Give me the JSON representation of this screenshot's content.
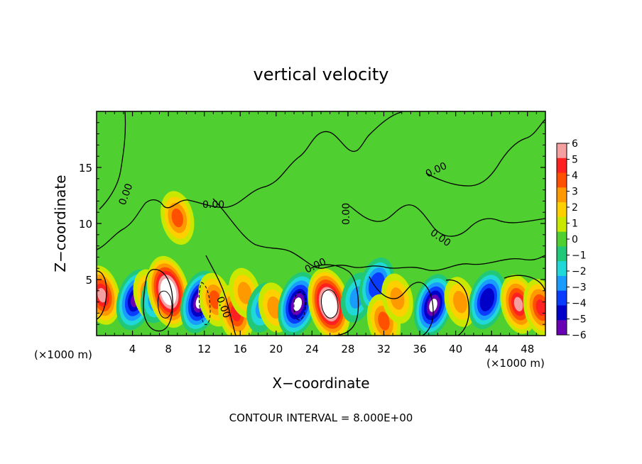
{
  "chart_data": {
    "type": "heatmap",
    "title": "vertical velocity",
    "xlabel": "X−coordinate",
    "ylabel": "Z−coordinate",
    "x_unit_left": "(×1000 m)",
    "x_unit_right": "(×1000 m)",
    "footer": "CONTOUR INTERVAL = 8.000E+00",
    "xlim": [
      0,
      50
    ],
    "ylim": [
      0,
      20
    ],
    "x_ticks": [
      4,
      8,
      12,
      16,
      20,
      24,
      28,
      32,
      36,
      40,
      44,
      48
    ],
    "x_tick_labels": [
      "4",
      "8",
      "12",
      "16",
      "20",
      "24",
      "28",
      "32",
      "36",
      "40",
      "44",
      "48"
    ],
    "y_ticks": [
      5,
      10,
      15
    ],
    "y_tick_labels": [
      "5",
      "10",
      "15"
    ],
    "colorbar": {
      "levels": [
        6,
        5,
        4,
        3,
        2,
        1,
        0,
        -1,
        -2,
        -3,
        -4,
        -5,
        -6
      ],
      "labels": [
        "6",
        "5",
        "4",
        "3",
        "2",
        "1",
        "0",
        "−1",
        "−2",
        "−3",
        "−4",
        "−5",
        "−6"
      ],
      "colors": [
        "#f4a0a0",
        "#ff2020",
        "#ff5000",
        "#ff9900",
        "#ffd000",
        "#c8e800",
        "#50d030",
        "#20c878",
        "#20d8d8",
        "#1a9cff",
        "#0a3cff",
        "#0000c8",
        "#6a00b4"
      ]
    },
    "contour_labels": [
      "0.00",
      "0.00",
      "0.00",
      "0.00",
      "0.00",
      "0.00",
      "0.00"
    ],
    "anomalies": [
      {
        "x": 0.6,
        "z": 3.6,
        "w": 5.5
      },
      {
        "x": 4.3,
        "z": 3.2,
        "w": -6
      },
      {
        "x": 5.9,
        "z": 3.6,
        "w": 3.5
      },
      {
        "x": 6.8,
        "z": 3.5,
        "w": -4
      },
      {
        "x": 8.0,
        "z": 3.9,
        "w": 9
      },
      {
        "x": 9.0,
        "z": 10.5,
        "w": 4
      },
      {
        "x": 11.5,
        "z": 3.0,
        "w": -6.5
      },
      {
        "x": 13.2,
        "z": 3.2,
        "w": 4
      },
      {
        "x": 15.5,
        "z": 2.0,
        "w": 5
      },
      {
        "x": 16.5,
        "z": 3.8,
        "w": 3
      },
      {
        "x": 18.5,
        "z": 2.5,
        "w": -3
      },
      {
        "x": 19.8,
        "z": 2.5,
        "w": 3
      },
      {
        "x": 22.4,
        "z": 2.8,
        "w": -7
      },
      {
        "x": 25.9,
        "z": 2.8,
        "w": 9
      },
      {
        "x": 29.0,
        "z": 3.4,
        "w": -3
      },
      {
        "x": 31.2,
        "z": 4.5,
        "w": -4.5
      },
      {
        "x": 32.0,
        "z": 1.3,
        "w": 4
      },
      {
        "x": 33.5,
        "z": 3.3,
        "w": 3
      },
      {
        "x": 37.5,
        "z": 2.7,
        "w": -6.5
      },
      {
        "x": 40.5,
        "z": 3.0,
        "w": 3
      },
      {
        "x": 43.5,
        "z": 3.2,
        "w": -5.5
      },
      {
        "x": 47.0,
        "z": 2.8,
        "w": 5.5
      },
      {
        "x": 49.5,
        "z": 2.5,
        "w": 5
      }
    ]
  }
}
